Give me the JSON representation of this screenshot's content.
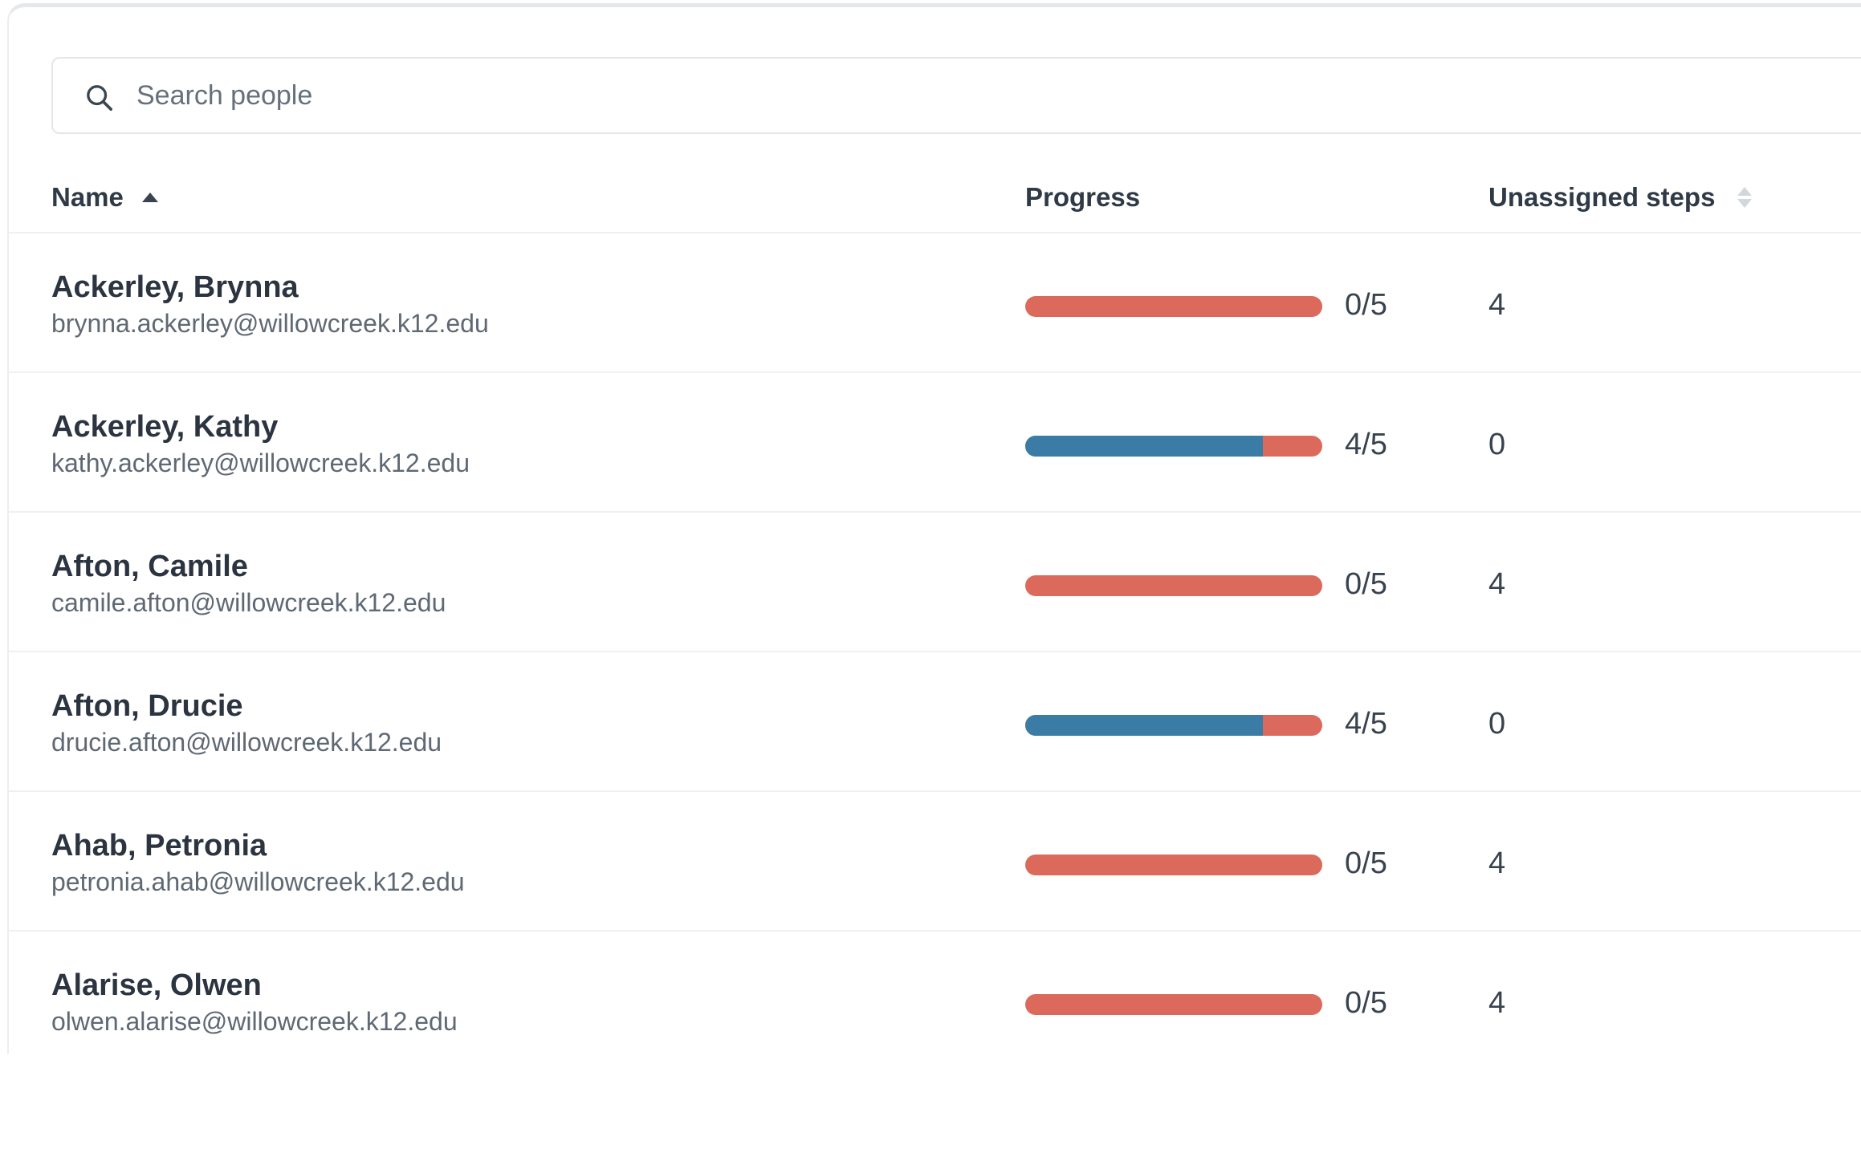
{
  "search": {
    "placeholder": "Search people",
    "value": ""
  },
  "columns": {
    "name": "Name",
    "progress": "Progress",
    "unassigned": "Unassigned steps"
  },
  "colors": {
    "complete": "#3a7ca5",
    "incomplete": "#db6a5c"
  },
  "people": [
    {
      "name": "Ackerley, Brynna",
      "email": "brynna.ackerley@willowcreek.k12.edu",
      "progress_text": "0/5",
      "completed": 0,
      "total": 5,
      "unassigned": "4"
    },
    {
      "name": "Ackerley, Kathy",
      "email": "kathy.ackerley@willowcreek.k12.edu",
      "progress_text": "4/5",
      "completed": 4,
      "total": 5,
      "unassigned": "0"
    },
    {
      "name": "Afton, Camile",
      "email": "camile.afton@willowcreek.k12.edu",
      "progress_text": "0/5",
      "completed": 0,
      "total": 5,
      "unassigned": "4"
    },
    {
      "name": "Afton, Drucie",
      "email": "drucie.afton@willowcreek.k12.edu",
      "progress_text": "4/5",
      "completed": 4,
      "total": 5,
      "unassigned": "0"
    },
    {
      "name": "Ahab, Petronia",
      "email": "petronia.ahab@willowcreek.k12.edu",
      "progress_text": "0/5",
      "completed": 0,
      "total": 5,
      "unassigned": "4"
    },
    {
      "name": "Alarise, Olwen",
      "email": "olwen.alarise@willowcreek.k12.edu",
      "progress_text": "0/5",
      "completed": 0,
      "total": 5,
      "unassigned": "4"
    }
  ]
}
